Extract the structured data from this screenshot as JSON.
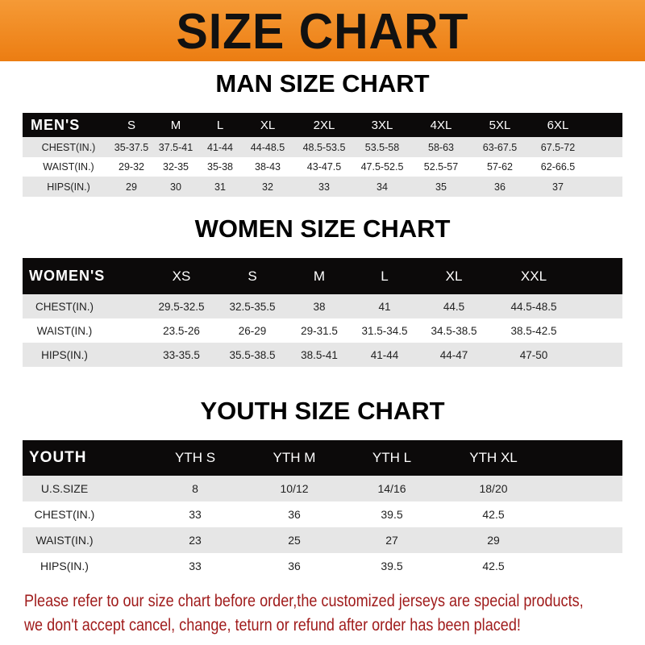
{
  "title": "SIZE CHART",
  "colors": {
    "banner": "#ef8a22",
    "header_row": "#0c0a0a",
    "stripe": "#e6e6e6",
    "note": "#a01c1c"
  },
  "men": {
    "title": "MAN SIZE CHART",
    "headers": [
      "MEN'S",
      "S",
      "M",
      "L",
      "XL",
      "2XL",
      "3XL",
      "4XL",
      "5XL",
      "6XL"
    ],
    "rows": [
      [
        "CHEST(IN.)",
        "35-37.5",
        "37.5-41",
        "41-44",
        "44-48.5",
        "48.5-53.5",
        "53.5-58",
        "58-63",
        "63-67.5",
        "67.5-72"
      ],
      [
        "WAIST(IN.)",
        "29-32",
        "32-35",
        "35-38",
        "38-43",
        "43-47.5",
        "47.5-52.5",
        "52.5-57",
        "57-62",
        "62-66.5"
      ],
      [
        "HIPS(IN.)",
        "29",
        "30",
        "31",
        "32",
        "33",
        "34",
        "35",
        "36",
        "37"
      ]
    ]
  },
  "women": {
    "title": "WOMEN SIZE CHART",
    "headers": [
      "WOMEN'S",
      "XS",
      "S",
      "M",
      "L",
      "XL",
      "XXL"
    ],
    "rows": [
      [
        "CHEST(IN.)",
        "29.5-32.5",
        "32.5-35.5",
        "38",
        "41",
        "44.5",
        "44.5-48.5"
      ],
      [
        "WAIST(IN.)",
        "23.5-26",
        "26-29",
        "29-31.5",
        "31.5-34.5",
        "34.5-38.5",
        "38.5-42.5"
      ],
      [
        "HIPS(IN.)",
        "33-35.5",
        "35.5-38.5",
        "38.5-41",
        "41-44",
        "44-47",
        "47-50"
      ]
    ]
  },
  "youth": {
    "title": "YOUTH SIZE CHART",
    "headers": [
      "YOUTH",
      "YTH S",
      "YTH M",
      "YTH L",
      "YTH XL"
    ],
    "rows": [
      [
        "U.S.SIZE",
        "8",
        "10/12",
        "14/16",
        "18/20"
      ],
      [
        "CHEST(IN.)",
        "33",
        "36",
        "39.5",
        "42.5"
      ],
      [
        "WAIST(IN.)",
        "23",
        "25",
        "27",
        "29"
      ],
      [
        "HIPS(IN.)",
        "33",
        "36",
        "39.5",
        "42.5"
      ]
    ]
  },
  "note": {
    "line1": "Please refer to our size chart before order,the customized jerseys are special products,",
    "line2": "we don't accept cancel, change, teturn or refund after order has been placed!"
  }
}
